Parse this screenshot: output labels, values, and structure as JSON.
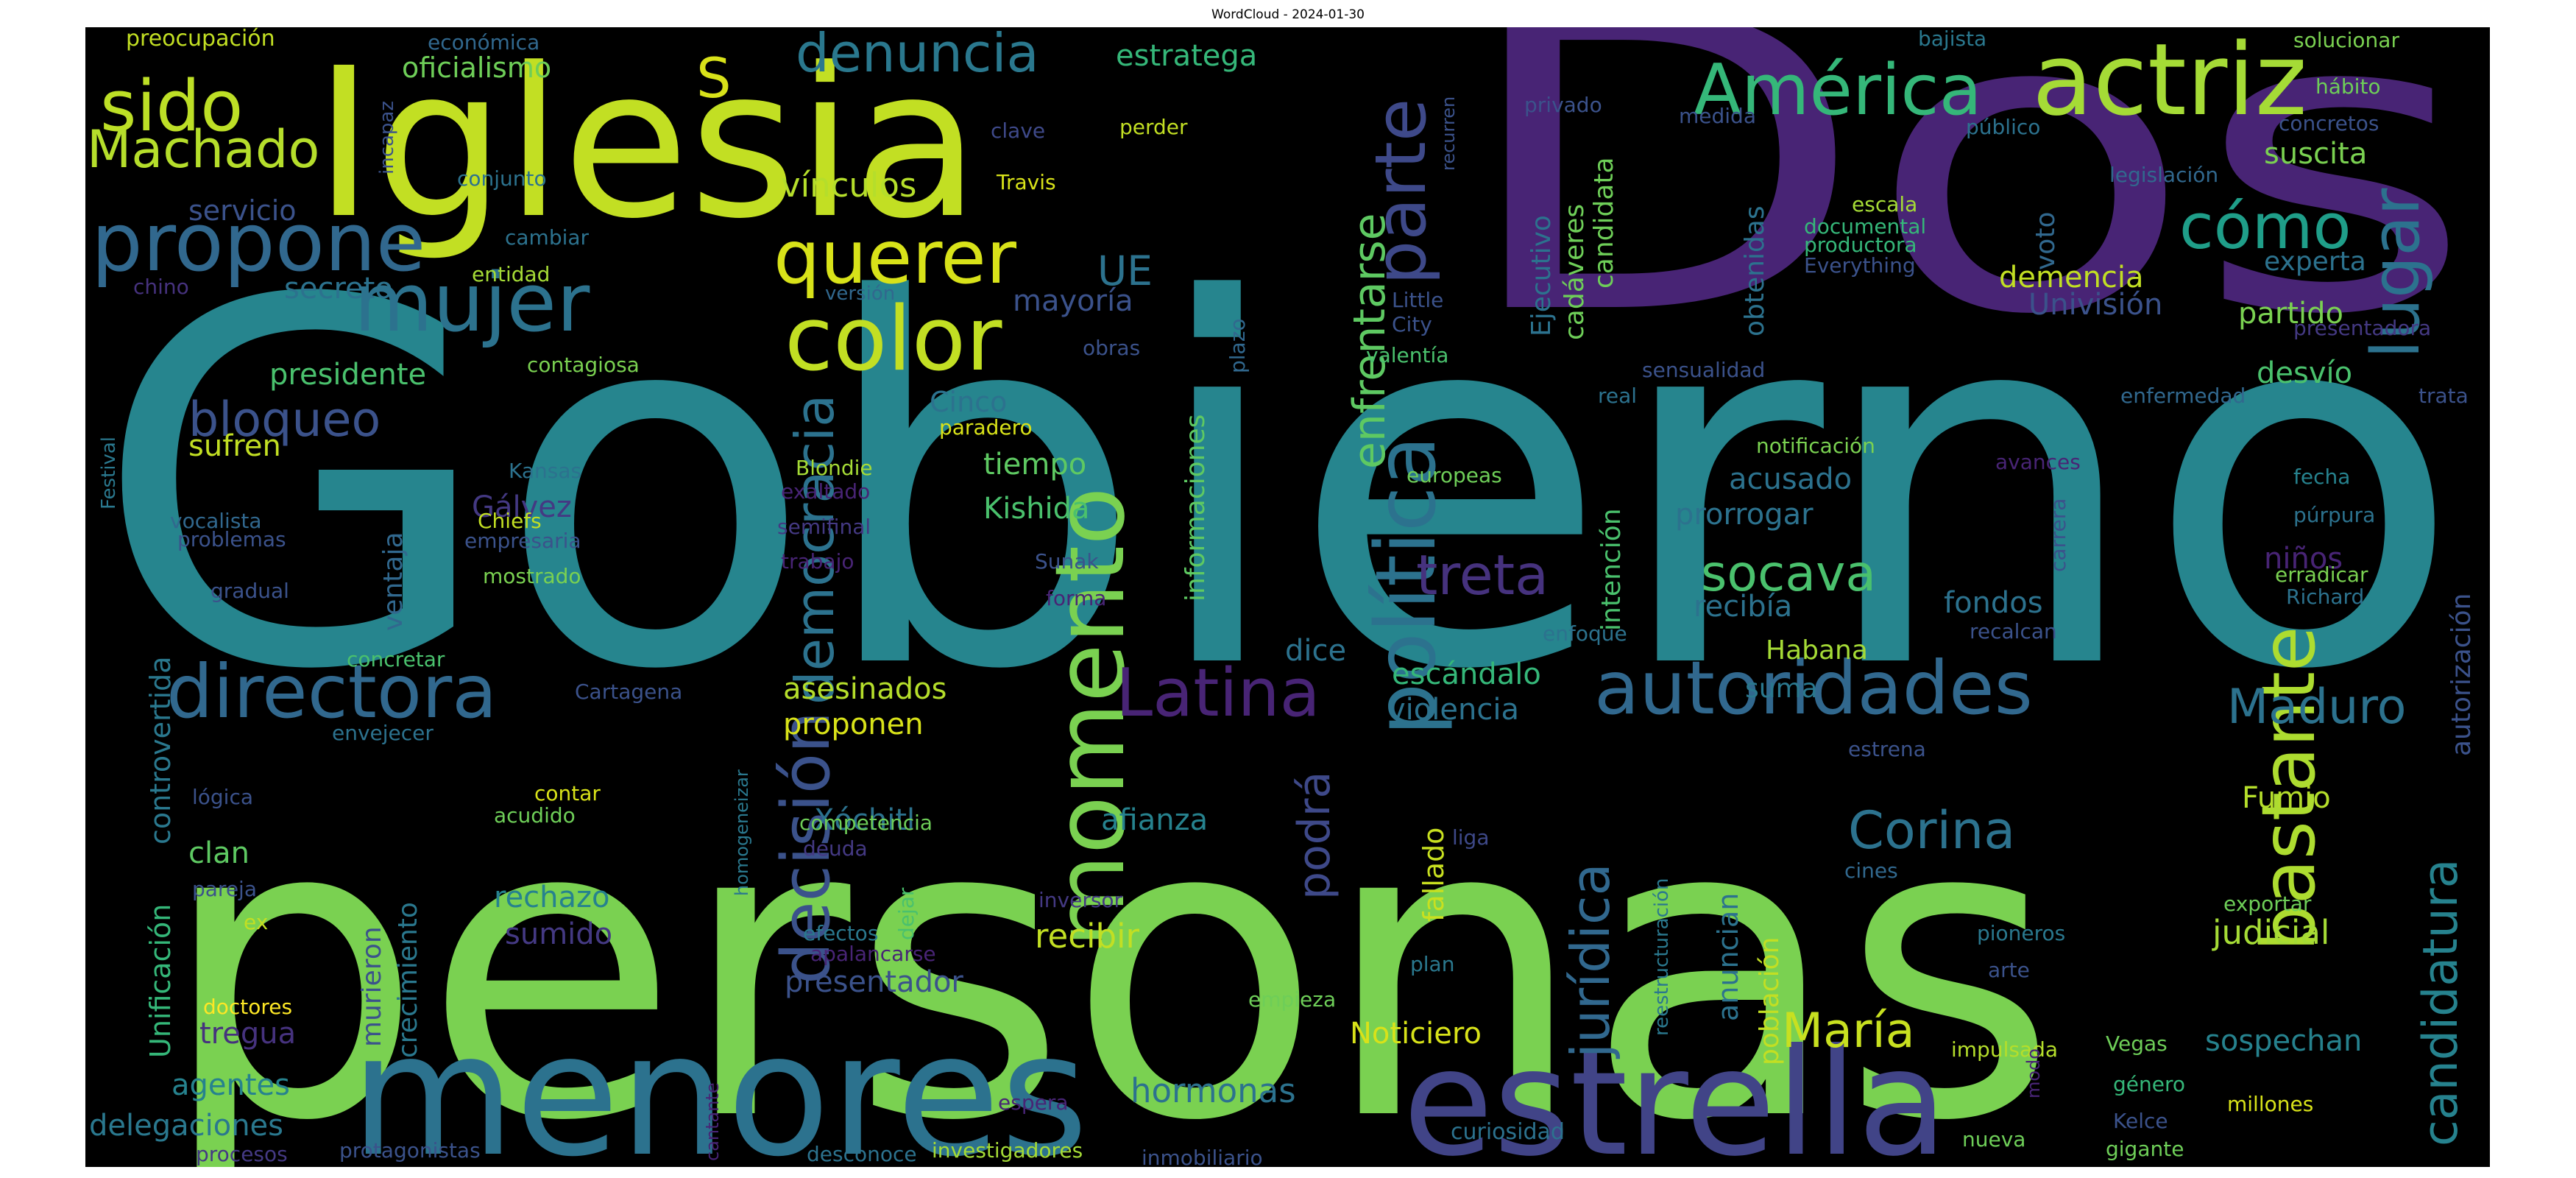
{
  "title": "WordCloud - 2024-01-30",
  "chart_data": {
    "type": "wordcloud",
    "title": "WordCloud - 2024-01-30",
    "words": [
      {
        "text": "Gobierno",
        "color": "#26858e"
      },
      {
        "text": "personas",
        "color": "#7ad151"
      },
      {
        "text": "Dos",
        "color": "#482475"
      },
      {
        "text": "Iglesia",
        "color": "#c2df23"
      },
      {
        "text": "menores",
        "color": "#2c728e"
      },
      {
        "text": "estrella",
        "color": "#414487"
      },
      {
        "text": "actriz",
        "color": "#a5db36"
      },
      {
        "text": "momento",
        "color": "#7ad151"
      },
      {
        "text": "política",
        "color": "#2c728e"
      },
      {
        "text": "color",
        "color": "#c2df23"
      },
      {
        "text": "mujer",
        "color": "#2c728e"
      },
      {
        "text": "propone",
        "color": "#31688e"
      },
      {
        "text": "querer",
        "color": "#d8e219"
      },
      {
        "text": "directora",
        "color": "#31688e"
      },
      {
        "text": "autoridades",
        "color": "#31688e"
      },
      {
        "text": "América",
        "color": "#35b779"
      },
      {
        "text": "bastante",
        "color": "#addc30"
      },
      {
        "text": "decisión",
        "color": "#3b528b"
      },
      {
        "text": "Latina",
        "color": "#482475"
      },
      {
        "text": "parte",
        "color": "#3e4989"
      },
      {
        "text": "sido",
        "color": "#bddf26"
      },
      {
        "text": "lugar",
        "color": "#2c728e"
      },
      {
        "text": "cómo",
        "color": "#1f9e89"
      },
      {
        "text": "Machado",
        "color": "#b5de2b"
      },
      {
        "text": "denuncia",
        "color": "#2a788e"
      },
      {
        "text": "democracia",
        "color": "#2c728e"
      },
      {
        "text": "jurídica",
        "color": "#31688e"
      },
      {
        "text": "Corina",
        "color": "#2c728e"
      },
      {
        "text": "candidatura",
        "color": "#26828e"
      },
      {
        "text": "María",
        "color": "#c8e020"
      },
      {
        "text": "Maduro",
        "color": "#2c728e"
      },
      {
        "text": "enfrentarse",
        "color": "#5ec962"
      },
      {
        "text": "socava",
        "color": "#4ac16d"
      },
      {
        "text": "treta",
        "color": "#46327e"
      },
      {
        "text": "bloqueo",
        "color": "#3b528b"
      },
      {
        "text": "S",
        "color": "#d8e219"
      },
      {
        "text": "podrá",
        "color": "#3e4989"
      },
      {
        "text": "UE",
        "color": "#2c728e"
      },
      {
        "text": "oficialismo",
        "color": "#6ece58"
      },
      {
        "text": "servicio",
        "color": "#3b528b"
      },
      {
        "text": "secreto",
        "color": "#2c728e"
      },
      {
        "text": "presidente",
        "color": "#4ac16d"
      },
      {
        "text": "sufren",
        "color": "#c2df23"
      },
      {
        "text": "vínculos",
        "color": "#b5de2b"
      },
      {
        "text": "estratega",
        "color": "#35b779"
      },
      {
        "text": "mayoría",
        "color": "#3b528b"
      },
      {
        "text": "Cinco",
        "color": "#2c728e"
      },
      {
        "text": "tiempo",
        "color": "#5ec962"
      },
      {
        "text": "Kishida",
        "color": "#4ac16d"
      },
      {
        "text": "asesinados",
        "color": "#b5de2b"
      },
      {
        "text": "proponen",
        "color": "#d8e219"
      },
      {
        "text": "Xóchitl",
        "color": "#2c728e"
      },
      {
        "text": "afianza",
        "color": "#26828e"
      },
      {
        "text": "recibir",
        "color": "#c2df23"
      },
      {
        "text": "presentador",
        "color": "#3b528b"
      },
      {
        "text": "hormonas",
        "color": "#2c728e"
      },
      {
        "text": "Noticiero",
        "color": "#d8e219"
      },
      {
        "text": "rechazo",
        "color": "#26828e"
      },
      {
        "text": "sumido",
        "color": "#443983"
      },
      {
        "text": "clan",
        "color": "#5ec962"
      },
      {
        "text": "tregua",
        "color": "#46327e"
      },
      {
        "text": "agentes",
        "color": "#26828e"
      },
      {
        "text": "delegaciones",
        "color": "#2a788e"
      },
      {
        "text": "murieron",
        "color": "#3b528b"
      },
      {
        "text": "crecimiento",
        "color": "#2a788e"
      },
      {
        "text": "ventaja",
        "color": "#31688e"
      },
      {
        "text": "Gálvez",
        "color": "#443983"
      },
      {
        "text": "controvertida",
        "color": "#2a788e"
      },
      {
        "text": "Unificación",
        "color": "#35b779"
      },
      {
        "text": "informaciones",
        "color": "#5ec962"
      },
      {
        "text": "dice",
        "color": "#2c728e"
      },
      {
        "text": "escándalo",
        "color": "#35b779"
      },
      {
        "text": "violencia",
        "color": "#2c728e"
      },
      {
        "text": "fallado",
        "color": "#c8e020"
      },
      {
        "text": "acusado",
        "color": "#2c728e"
      },
      {
        "text": "prorrogar",
        "color": "#2c728e"
      },
      {
        "text": "recibía",
        "color": "#2c728e"
      },
      {
        "text": "Habana",
        "color": "#a5db36"
      },
      {
        "text": "suma",
        "color": "#2a788e"
      },
      {
        "text": "fondos",
        "color": "#2c728e"
      },
      {
        "text": "intención",
        "color": "#4ac16d"
      },
      {
        "text": "anuncian",
        "color": "#2c728e"
      },
      {
        "text": "población",
        "color": "#c2df23"
      },
      {
        "text": "judicial",
        "color": "#a5db36"
      },
      {
        "text": "sospechan",
        "color": "#26828e"
      },
      {
        "text": "Fumio",
        "color": "#b5de2b"
      },
      {
        "text": "niños",
        "color": "#482475"
      },
      {
        "text": "desvío",
        "color": "#4ac16d"
      },
      {
        "text": "partido",
        "color": "#7ad151"
      },
      {
        "text": "experta",
        "color": "#2c728e"
      },
      {
        "text": "Univisión",
        "color": "#3b528b"
      },
      {
        "text": "demencia",
        "color": "#c2df23"
      },
      {
        "text": "suscita",
        "color": "#7ad151"
      },
      {
        "text": "voto",
        "color": "#31688e"
      },
      {
        "text": "obtenidas",
        "color": "#2c728e"
      },
      {
        "text": "candidata",
        "color": "#6ece58"
      },
      {
        "text": "cadáveres",
        "color": "#6ece58"
      },
      {
        "text": "Ejecutivo",
        "color": "#2c728e"
      },
      {
        "text": "autorización",
        "color": "#3b528b"
      },
      {
        "text": "preocupación",
        "color": "#c2df23"
      },
      {
        "text": "económica",
        "color": "#31688e"
      },
      {
        "text": "incapaz",
        "color": "#3b528b"
      },
      {
        "text": "conjunto",
        "color": "#2c728e"
      },
      {
        "text": "cambiar",
        "color": "#2c728e"
      },
      {
        "text": "entidad",
        "color": "#a5db36"
      },
      {
        "text": "chino",
        "color": "#46327e"
      },
      {
        "text": "versión",
        "color": "#31688e"
      },
      {
        "text": "contagiosa",
        "color": "#7ad151"
      },
      {
        "text": "clave",
        "color": "#3e4989"
      },
      {
        "text": "perder",
        "color": "#c2df23"
      },
      {
        "text": "Travis",
        "color": "#d8e219"
      },
      {
        "text": "recurren",
        "color": "#3b528b"
      },
      {
        "text": "plazo",
        "color": "#31688e"
      },
      {
        "text": "obras",
        "color": "#3b528b"
      },
      {
        "text": "Little",
        "color": "#3b528b"
      },
      {
        "text": "City",
        "color": "#3b528b"
      },
      {
        "text": "valentía",
        "color": "#4ac16d"
      },
      {
        "text": "paradero",
        "color": "#d8e219"
      },
      {
        "text": "privado",
        "color": "#3b528b"
      },
      {
        "text": "medida",
        "color": "#3b528b"
      },
      {
        "text": "bajista",
        "color": "#2a788e"
      },
      {
        "text": "público",
        "color": "#2c728e"
      },
      {
        "text": "solucionar",
        "color": "#7ad151"
      },
      {
        "text": "hábito",
        "color": "#6ece58"
      },
      {
        "text": "concretos",
        "color": "#3b528b"
      },
      {
        "text": "legislación",
        "color": "#31688e"
      },
      {
        "text": "escala",
        "color": "#a5db36"
      },
      {
        "text": "documental",
        "color": "#35b779"
      },
      {
        "text": "productora",
        "color": "#35b779"
      },
      {
        "text": "Everything",
        "color": "#3b528b"
      },
      {
        "text": "presentadora",
        "color": "#443983"
      },
      {
        "text": "sensualidad",
        "color": "#3b528b"
      },
      {
        "text": "real",
        "color": "#2c728e"
      },
      {
        "text": "enfermedad",
        "color": "#31688e"
      },
      {
        "text": "trata",
        "color": "#3b528b"
      },
      {
        "text": "notificación",
        "color": "#7ad151"
      },
      {
        "text": "avances",
        "color": "#482475"
      },
      {
        "text": "fecha",
        "color": "#26828e"
      },
      {
        "text": "púrpura",
        "color": "#2c728e"
      },
      {
        "text": "carrera",
        "color": "#3b528b"
      },
      {
        "text": "erradicar",
        "color": "#7ad151"
      },
      {
        "text": "Richard",
        "color": "#2c728e"
      },
      {
        "text": "europeas",
        "color": "#6ece58"
      },
      {
        "text": "enfoque",
        "color": "#2c728e"
      },
      {
        "text": "recalcan",
        "color": "#3b528b"
      },
      {
        "text": "estrena",
        "color": "#3b528b"
      },
      {
        "text": "liga",
        "color": "#3e4989"
      },
      {
        "text": "reestructuración",
        "color": "#2a788e"
      },
      {
        "text": "cines",
        "color": "#31688e"
      },
      {
        "text": "exportar",
        "color": "#6ece58"
      },
      {
        "text": "pioneros",
        "color": "#2a788e"
      },
      {
        "text": "arte",
        "color": "#3b528b"
      },
      {
        "text": "plan",
        "color": "#2a788e"
      },
      {
        "text": "impulsada",
        "color": "#b5de2b"
      },
      {
        "text": "Vegas",
        "color": "#6ece58"
      },
      {
        "text": "género",
        "color": "#35b779"
      },
      {
        "text": "modo",
        "color": "#482475"
      },
      {
        "text": "Kelce",
        "color": "#3b528b"
      },
      {
        "text": "millones",
        "color": "#d8e219"
      },
      {
        "text": "gigante",
        "color": "#6ece58"
      },
      {
        "text": "curiosidad",
        "color": "#2c728e"
      },
      {
        "text": "nueva",
        "color": "#6ece58"
      },
      {
        "text": "empieza",
        "color": "#6ece58"
      },
      {
        "text": "Festival",
        "color": "#2a788e"
      },
      {
        "text": "Kansas",
        "color": "#2c728e"
      },
      {
        "text": "Chiefs",
        "color": "#c2df23"
      },
      {
        "text": "empresaria",
        "color": "#3b528b"
      },
      {
        "text": "mostrado",
        "color": "#7ad151"
      },
      {
        "text": "vocalista",
        "color": "#31688e"
      },
      {
        "text": "problemas",
        "color": "#3b528b"
      },
      {
        "text": "gradual",
        "color": "#3b528b"
      },
      {
        "text": "concretar",
        "color": "#4ac16d"
      },
      {
        "text": "Cartagena",
        "color": "#3b528b"
      },
      {
        "text": "Blondie",
        "color": "#a5db36"
      },
      {
        "text": "exaltado",
        "color": "#482475"
      },
      {
        "text": "semifinal",
        "color": "#443983"
      },
      {
        "text": "trabajo",
        "color": "#482475"
      },
      {
        "text": "Sunak",
        "color": "#3b528b"
      },
      {
        "text": "forma",
        "color": "#482475"
      },
      {
        "text": "envejecer",
        "color": "#2c728e"
      },
      {
        "text": "lógica",
        "color": "#3b528b"
      },
      {
        "text": "pareja",
        "color": "#3b528b"
      },
      {
        "text": "ex",
        "color": "#c2df23"
      },
      {
        "text": "contar",
        "color": "#d8e219"
      },
      {
        "text": "acudido",
        "color": "#6ece58"
      },
      {
        "text": "homogeneizar",
        "color": "#2a788e"
      },
      {
        "text": "competencia",
        "color": "#6ece58"
      },
      {
        "text": "deuda",
        "color": "#443983"
      },
      {
        "text": "dejar",
        "color": "#4ac16d"
      },
      {
        "text": "efectos",
        "color": "#2a788e"
      },
      {
        "text": "apalancarse",
        "color": "#482475"
      },
      {
        "text": "inversor",
        "color": "#443983"
      },
      {
        "text": "doctores",
        "color": "#fde725"
      },
      {
        "text": "cantante",
        "color": "#482475"
      },
      {
        "text": "espera",
        "color": "#482475"
      },
      {
        "text": "procesos",
        "color": "#443983"
      },
      {
        "text": "protagonistas",
        "color": "#3b528b"
      },
      {
        "text": "desconoce",
        "color": "#2c728e"
      },
      {
        "text": "investigadores",
        "color": "#a5db36"
      },
      {
        "text": "inmobiliario",
        "color": "#3b528b"
      }
    ]
  }
}
